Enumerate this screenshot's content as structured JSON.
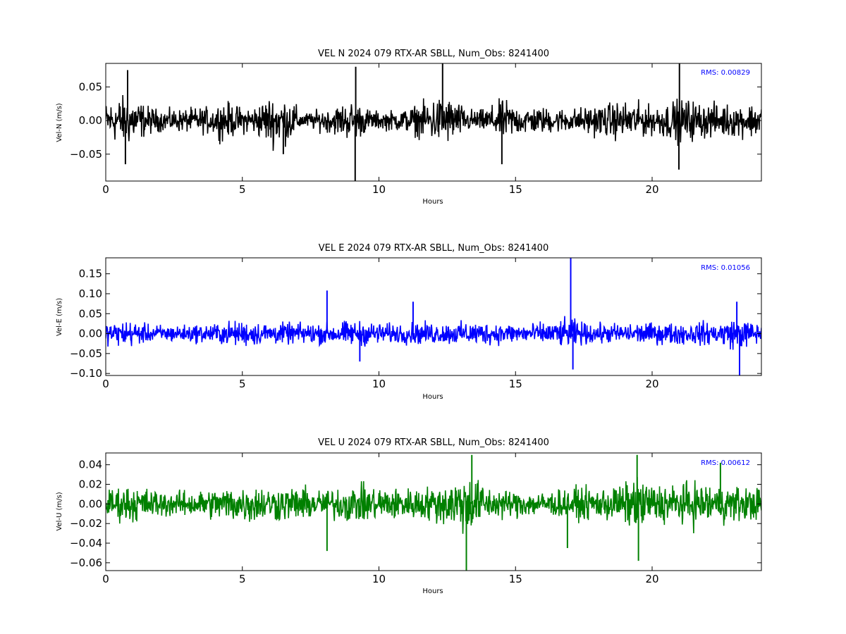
{
  "chart_data": [
    {
      "type": "line",
      "title": "VEL N 2024 079 RTX-AR  SBLL, Num_Obs: 8241400",
      "xlabel": "Hours",
      "ylabel": "Vel-N (m/s)",
      "xlim": [
        0,
        24
      ],
      "ylim": [
        -0.09,
        0.085
      ],
      "x_ticks": [
        0,
        5,
        10,
        15,
        20
      ],
      "x_tick_labels": [
        "0",
        "5",
        "10",
        "15",
        "20"
      ],
      "y_ticks": [
        -0.05,
        0.0,
        0.05
      ],
      "y_tick_labels": [
        "−0.05",
        "0.00",
        "0.05"
      ],
      "annotation": "RMS:  0.00829",
      "rms": 0.00829,
      "grid": false,
      "series": [
        {
          "color": "#000000",
          "amplitude_envelope": {
            "x": [
              0,
              0.5,
              0.9,
              1.5,
              2,
              3,
              4,
              4.3,
              4.6,
              5,
              5.5,
              5.8,
              6.1,
              6.5,
              6.8,
              7.2,
              7.8,
              8.3,
              8.6,
              9.0,
              9.2,
              9.6,
              10,
              11,
              11.6,
              12.0,
              12.4,
              12.8,
              13.2,
              13.8,
              14.3,
              14.6,
              15,
              16,
              17,
              18,
              18.8,
              19.5,
              20,
              20.8,
              21.2,
              21.8,
              22.5,
              23.2,
              24
            ],
            "y": [
              0.03,
              0.04,
              0.042,
              0.025,
              0.018,
              0.02,
              0.024,
              0.034,
              0.028,
              0.022,
              0.025,
              0.036,
              0.042,
              0.04,
              0.035,
              0.012,
              0.018,
              0.022,
              0.028,
              0.032,
              0.03,
              0.02,
              0.015,
              0.02,
              0.03,
              0.038,
              0.042,
              0.034,
              0.02,
              0.018,
              0.03,
              0.035,
              0.025,
              0.022,
              0.02,
              0.026,
              0.032,
              0.03,
              0.024,
              0.034,
              0.038,
              0.03,
              0.028,
              0.027,
              0.03
            ]
          },
          "peaks": [
            [
              0.8,
              0.075
            ],
            [
              0.72,
              -0.065
            ],
            [
              9.15,
              0.08
            ],
            [
              9.13,
              -0.09
            ],
            [
              12.33,
              0.085
            ],
            [
              21.0,
              0.085
            ],
            [
              20.98,
              -0.073
            ],
            [
              14.5,
              -0.065
            ],
            [
              6.5,
              -0.05
            ]
          ]
        }
      ]
    },
    {
      "type": "line",
      "title": "VEL E 2024 079 RTX-AR  SBLL, Num_Obs: 8241400",
      "xlabel": "Hours",
      "ylabel": "Vel-E (m/s)",
      "xlim": [
        0,
        24
      ],
      "ylim": [
        -0.105,
        0.19
      ],
      "x_ticks": [
        0,
        5,
        10,
        15,
        20
      ],
      "x_tick_labels": [
        "0",
        "5",
        "10",
        "15",
        "20"
      ],
      "y_ticks": [
        -0.1,
        -0.05,
        0.0,
        0.05,
        0.1,
        0.15
      ],
      "y_tick_labels": [
        "−0.10",
        "−0.05",
        "0.00",
        "0.05",
        "0.10",
        "0.15"
      ],
      "annotation": "RMS:  0.01056",
      "rms": 0.01056,
      "grid": false,
      "series": [
        {
          "color": "#0000ff",
          "amplitude_envelope": {
            "x": [
              0,
              0.8,
              1.5,
              2.5,
              3.5,
              4.5,
              5.2,
              6,
              7,
              8,
              9,
              9.5,
              10.5,
              11.5,
              12.5,
              13.5,
              14.5,
              15.5,
              16.5,
              17.0,
              17.5,
              18.5,
              19.5,
              20.5,
              21.5,
              22.5,
              23.0,
              23.6,
              24
            ],
            "y": [
              0.03,
              0.038,
              0.026,
              0.024,
              0.026,
              0.034,
              0.036,
              0.03,
              0.03,
              0.03,
              0.036,
              0.034,
              0.028,
              0.032,
              0.03,
              0.034,
              0.03,
              0.028,
              0.034,
              0.045,
              0.03,
              0.028,
              0.03,
              0.03,
              0.032,
              0.034,
              0.045,
              0.035,
              0.03
            ]
          },
          "peaks": [
            [
              8.1,
              0.108
            ],
            [
              17.02,
              0.19
            ],
            [
              17.1,
              -0.09
            ],
            [
              23.2,
              -0.105
            ],
            [
              11.25,
              0.08
            ],
            [
              9.3,
              -0.07
            ],
            [
              23.1,
              0.08
            ]
          ]
        }
      ]
    },
    {
      "type": "line",
      "title": "VEL U 2024 079 RTX-AR  SBLL, Num_Obs: 8241400",
      "xlabel": "Hours",
      "ylabel": "Vel-U (m/s)",
      "xlim": [
        0,
        24
      ],
      "ylim": [
        -0.068,
        0.052
      ],
      "x_ticks": [
        0,
        5,
        10,
        15,
        20
      ],
      "x_tick_labels": [
        "0",
        "5",
        "10",
        "15",
        "20"
      ],
      "y_ticks": [
        -0.06,
        -0.04,
        -0.02,
        0.0,
        0.02,
        0.04
      ],
      "y_tick_labels": [
        "−0.06",
        "−0.04",
        "−0.02",
        "0.00",
        "0.02",
        "0.04"
      ],
      "annotation": "RMS:  0.00612",
      "rms": 0.00612,
      "grid": false,
      "series": [
        {
          "color": "#008000",
          "amplitude_envelope": {
            "x": [
              0,
              0.8,
              1.5,
              2.5,
              3.5,
              4.5,
              5.2,
              6,
              7,
              8,
              9,
              10,
              11,
              12,
              12.8,
              13.2,
              13.6,
              14,
              15,
              16,
              17,
              18,
              19,
              19.5,
              20,
              21,
              21.5,
              22.5,
              23.5,
              24
            ],
            "y": [
              0.016,
              0.022,
              0.018,
              0.014,
              0.016,
              0.02,
              0.022,
              0.02,
              0.02,
              0.016,
              0.022,
              0.02,
              0.018,
              0.02,
              0.03,
              0.034,
              0.03,
              0.018,
              0.016,
              0.014,
              0.018,
              0.018,
              0.024,
              0.03,
              0.024,
              0.022,
              0.026,
              0.022,
              0.02,
              0.018
            ]
          },
          "peaks": [
            [
              13.2,
              -0.068
            ],
            [
              13.4,
              0.05
            ],
            [
              8.1,
              -0.048
            ],
            [
              19.5,
              -0.058
            ],
            [
              19.45,
              0.05
            ],
            [
              22.5,
              0.042
            ],
            [
              16.9,
              -0.045
            ]
          ]
        }
      ]
    }
  ]
}
